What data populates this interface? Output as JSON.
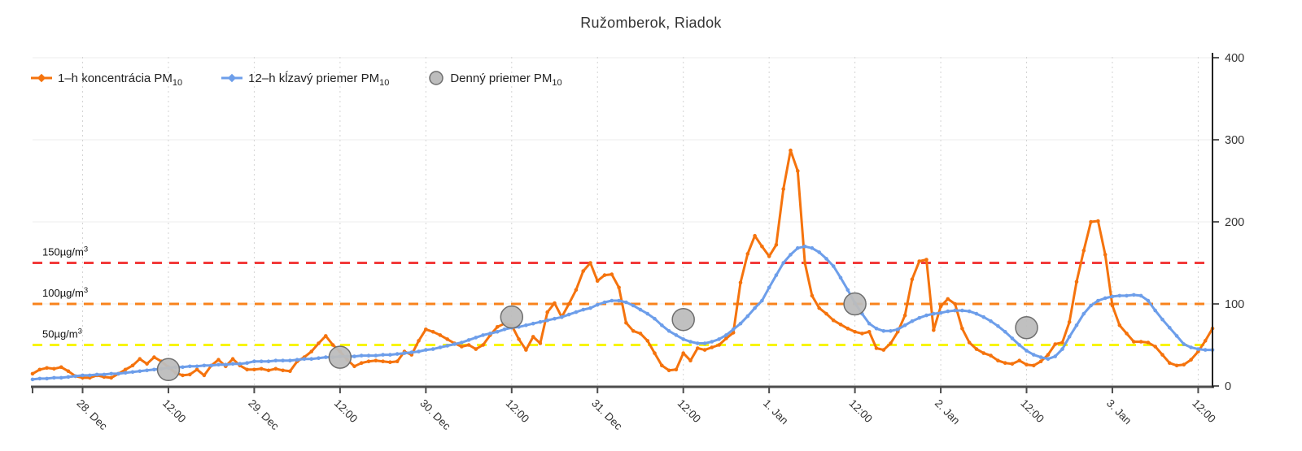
{
  "title": "Ružomberok, Riadok",
  "legend": {
    "items": [
      {
        "id": "pm-1h",
        "label": "1–h koncentrácia PM",
        "sub": "10",
        "color": "#F5730D",
        "marker": "line-diamond"
      },
      {
        "id": "pm-12h",
        "label": "12–h kĺzavý priemer PM",
        "sub": "10",
        "color": "#6D9EEA",
        "marker": "line-diamond"
      },
      {
        "id": "pm-daily",
        "label": "Denný priemer PM",
        "sub": "10",
        "color": "#BDBDBD",
        "marker": "circle"
      }
    ]
  },
  "chart_data": {
    "type": "line",
    "title": "Ružomberok, Riadok",
    "ylim": [
      0,
      400
    ],
    "y_ticks": [
      0,
      100,
      200,
      300,
      400
    ],
    "grid": {
      "horizontal": true,
      "vertical_dotted": true
    },
    "legend_position": "top-left",
    "x_unit": "hour",
    "x_tick_labels": [
      "28. Dec",
      "12:00",
      "29. Dec",
      "12:00",
      "30. Dec",
      "12:00",
      "31. Dec",
      "12:00",
      "1. Jan",
      "12:00",
      "2. Jan",
      "12:00",
      "3. Jan",
      "12:00"
    ],
    "x_tick_indices": [
      7,
      19,
      31,
      43,
      55,
      67,
      79,
      91,
      103,
      115,
      127,
      139,
      151,
      163
    ],
    "thresholds": [
      {
        "value": 150,
        "label": "150µg/m",
        "sup": "3",
        "color": "#F23A3A"
      },
      {
        "value": 100,
        "label": "100µg/m",
        "sup": "3",
        "color": "#F8831C"
      },
      {
        "value": 50,
        "label": "50µg/m",
        "sup": "3",
        "color": "#F8F500"
      }
    ],
    "series": [
      {
        "name": "1–h koncentrácia PM10",
        "color": "#F5730D",
        "values": [
          15,
          20,
          22,
          21,
          23,
          18,
          12,
          10,
          10,
          13,
          11,
          10,
          15,
          20,
          25,
          33,
          27,
          35,
          30,
          23,
          16,
          13,
          14,
          20,
          13,
          25,
          32,
          24,
          33,
          25,
          20,
          20,
          21,
          19,
          21,
          19,
          18,
          30,
          35,
          42,
          52,
          61,
          50,
          42,
          32,
          24,
          28,
          30,
          31,
          30,
          29,
          30,
          42,
          38,
          55,
          69,
          66,
          62,
          57,
          52,
          48,
          50,
          45,
          50,
          62,
          72,
          76,
          74,
          57,
          44,
          60,
          52,
          90,
          101,
          84,
          100,
          117,
          140,
          150,
          128,
          135,
          136,
          120,
          77,
          67,
          64,
          55,
          40,
          25,
          19,
          20,
          40,
          31,
          46,
          44,
          47,
          50,
          58,
          65,
          126,
          161,
          183,
          170,
          158,
          172,
          240,
          287,
          262,
          150,
          110,
          95,
          88,
          80,
          75,
          70,
          66,
          64,
          66,
          46,
          44,
          52,
          66,
          86,
          130,
          152,
          154,
          68,
          97,
          106,
          100,
          70,
          53,
          45,
          40,
          37,
          31,
          28,
          27,
          31,
          26,
          25,
          30,
          38,
          51,
          53,
          78,
          127,
          165,
          200,
          201,
          160,
          98,
          74,
          64,
          54,
          54,
          53,
          48,
          38,
          28,
          25,
          26,
          32,
          42,
          55,
          70
        ]
      },
      {
        "name": "12–h kĺzavý priemer PM10",
        "color": "#6D9EEA",
        "values": [
          8,
          9,
          9,
          10,
          10,
          11,
          12,
          13,
          13,
          14,
          14,
          15,
          15,
          16,
          17,
          18,
          19,
          20,
          21,
          22,
          23,
          23,
          24,
          24,
          25,
          25,
          26,
          26,
          27,
          27,
          28,
          30,
          30,
          30,
          31,
          31,
          31,
          32,
          33,
          33,
          34,
          35,
          35,
          36,
          36,
          36,
          37,
          37,
          37,
          38,
          38,
          39,
          40,
          41,
          42,
          44,
          45,
          47,
          49,
          51,
          53,
          56,
          59,
          62,
          64,
          66,
          69,
          71,
          72,
          74,
          76,
          78,
          80,
          82,
          84,
          87,
          90,
          93,
          95,
          99,
          102,
          104,
          104,
          102,
          98,
          93,
          88,
          82,
          74,
          67,
          62,
          57,
          54,
          52,
          52,
          54,
          57,
          62,
          69,
          76,
          85,
          95,
          104,
          120,
          135,
          150,
          160,
          168,
          170,
          168,
          163,
          155,
          146,
          132,
          117,
          101,
          88,
          76,
          70,
          67,
          67,
          69,
          74,
          79,
          83,
          86,
          88,
          89,
          91,
          92,
          92,
          91,
          88,
          84,
          79,
          73,
          66,
          58,
          50,
          43,
          38,
          35,
          33,
          36,
          45,
          60,
          74,
          88,
          98,
          104,
          107,
          109,
          110,
          110,
          111,
          110,
          104,
          92,
          81,
          71,
          61,
          51,
          47,
          45,
          44,
          44
        ]
      }
    ],
    "daily_averages": {
      "name": "Denný priemer PM10",
      "fill": "#BDBDBD",
      "stroke": "#6E6E6E",
      "points": [
        {
          "index": 19,
          "tick": "28. Dec 12:00",
          "value": 20
        },
        {
          "index": 43,
          "tick": "29. Dec 12:00",
          "value": 35
        },
        {
          "index": 67,
          "tick": "30. Dec 12:00",
          "value": 84
        },
        {
          "index": 91,
          "tick": "31. Dec 12:00",
          "value": 81
        },
        {
          "index": 115,
          "tick": "1. Jan 12:00",
          "value": 100
        },
        {
          "index": 139,
          "tick": "2. Jan 12:00",
          "value": 71
        }
      ]
    }
  }
}
